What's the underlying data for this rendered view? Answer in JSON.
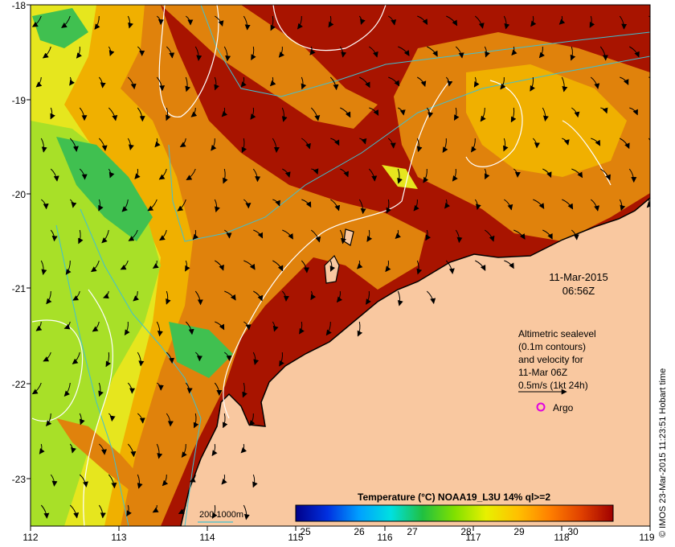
{
  "map": {
    "lon_ticks": [
      "112",
      "113",
      "114",
      "115",
      "116",
      "117",
      "118",
      "119"
    ],
    "lat_ticks": [
      "-18",
      "-19",
      "-20",
      "-21",
      "-22",
      "-23"
    ],
    "date_label": "11-Mar-2015",
    "time_label": "06:56Z",
    "legend_lines": [
      "Altimetric sealevel",
      "(0.1m contours)",
      "and velocity for",
      "11-Mar 06Z",
      "0.5m/s (1kt 24h)"
    ],
    "argo_label": "Argo",
    "argo_marker_color": "#e000e0",
    "depth_label": "200  1000m",
    "isobath_color": "#40c0d0",
    "colorbar_title": "Temperature (°C) NOAA19_L3U 14% ql>=2",
    "colorbar_ticks": [
      "25",
      "26",
      "27",
      "28",
      "29",
      "30"
    ],
    "colorbar_colors": [
      "#00008a",
      "#0030e0",
      "#00a0ff",
      "#00e0e0",
      "#20c040",
      "#80e000",
      "#e8f000",
      "#ffc000",
      "#ff8000",
      "#e04000",
      "#a00000"
    ],
    "credit": "© IMOS 23-Mar-2015 11:23:51 Hobart time",
    "land_color": "#f9c8a0",
    "sst_colors": {
      "hot": "#a81400",
      "warm": "#e0820c",
      "mid": "#f0b000",
      "cool": "#e6e61e",
      "cooler": "#a8e028",
      "cold": "#40c050"
    }
  }
}
